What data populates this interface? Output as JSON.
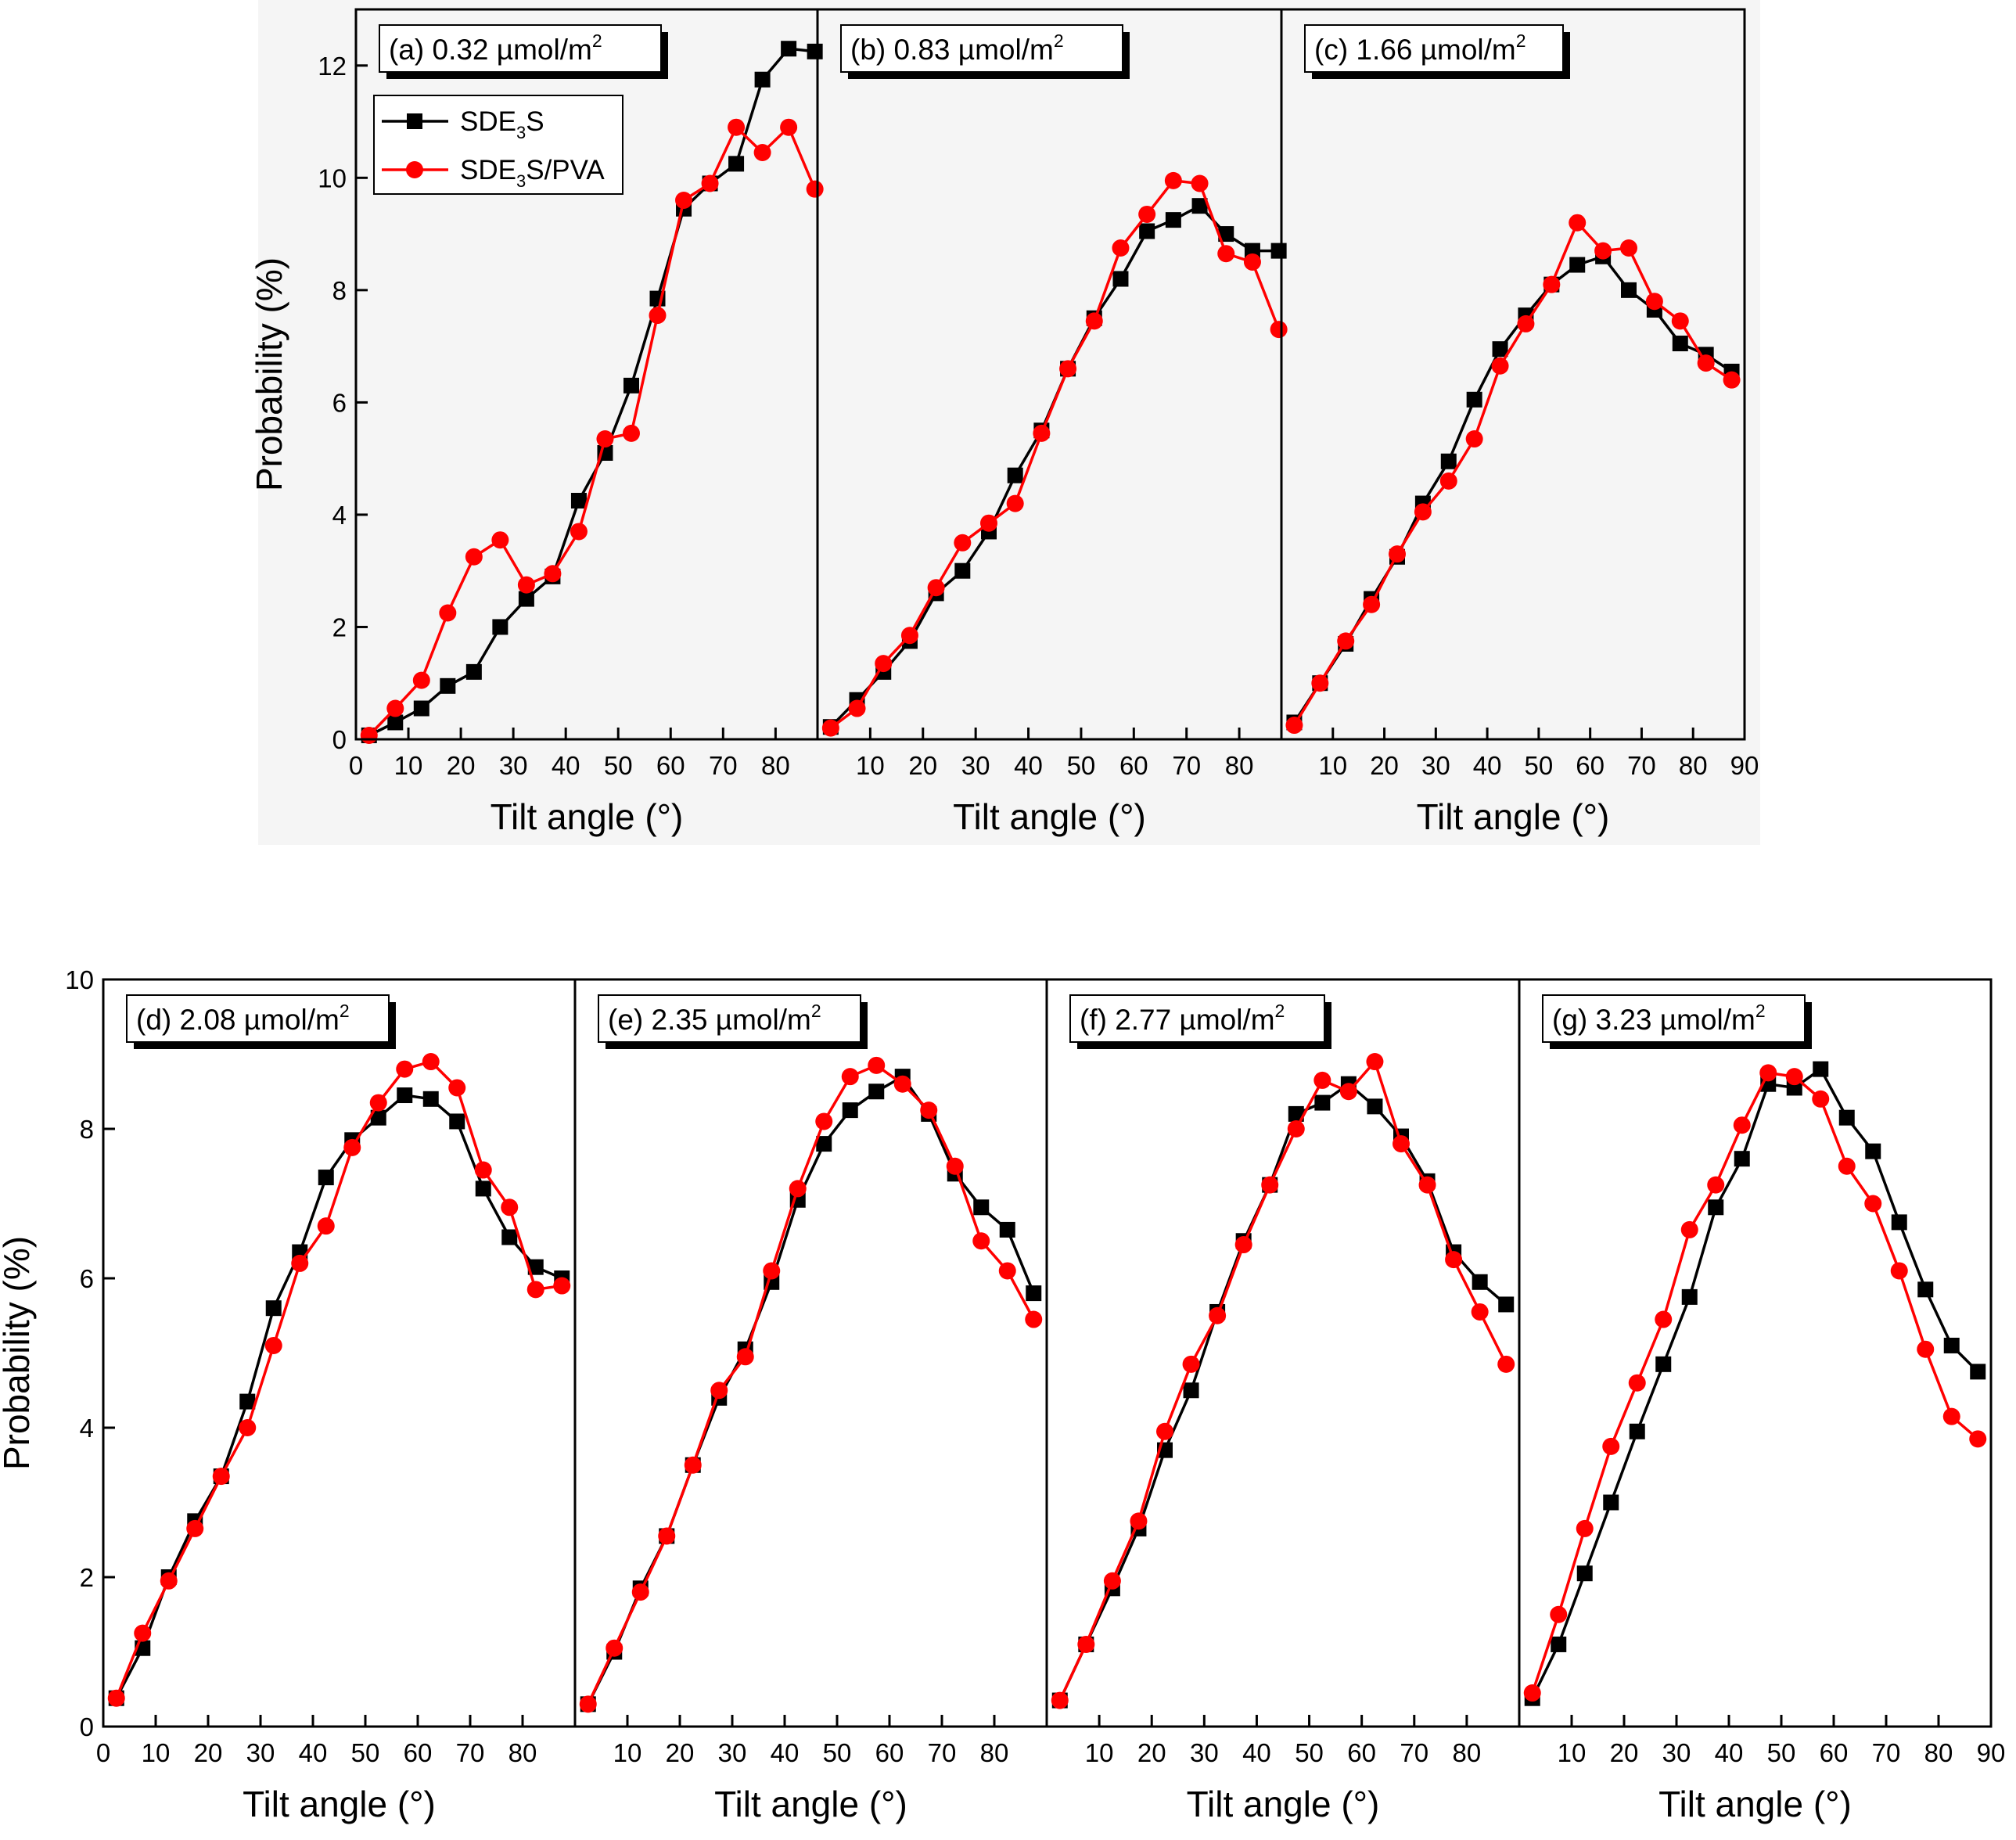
{
  "colors": {
    "series1": "#000000",
    "series2": "#ff0000",
    "row1_bg": "#f5f5f5",
    "frame": "#000000"
  },
  "legend": {
    "entries": [
      {
        "main": "SDE",
        "sub": "3",
        "rest": "S",
        "color": "#000000",
        "marker": "square"
      },
      {
        "main": "SDE",
        "sub": "3",
        "rest": "S/PVA",
        "color": "#ff0000",
        "marker": "circle"
      }
    ]
  },
  "chart_data": [
    {
      "type": "line",
      "row": 1,
      "ylabel": "Probability (%)",
      "ylim": [
        0,
        13
      ],
      "yticks": [
        0,
        2,
        4,
        6,
        8,
        10,
        12
      ],
      "panels": [
        {
          "title": "(a) 0.32 µmol/m",
          "sup": "2",
          "xlabel": "Tilt angle (°)",
          "xlim": [
            0,
            88
          ],
          "xticks": [
            0,
            10,
            20,
            30,
            40,
            50,
            60,
            70,
            80
          ],
          "series": [
            {
              "name": "SDE3S",
              "x": [
                2.5,
                7.5,
                12.5,
                17.5,
                22.5,
                27.5,
                32.5,
                37.5,
                42.5,
                47.5,
                52.5,
                57.5,
                62.5,
                67.5,
                72.5,
                77.5,
                82.5,
                87.5
              ],
              "y": [
                0.07,
                0.3,
                0.55,
                0.95,
                1.2,
                2.0,
                2.5,
                2.9,
                4.25,
                5.1,
                6.3,
                7.85,
                9.45,
                9.9,
                10.25,
                11.75,
                12.3,
                12.25
              ]
            },
            {
              "name": "SDE3S/PVA",
              "x": [
                2.5,
                7.5,
                12.5,
                17.5,
                22.5,
                27.5,
                32.5,
                37.5,
                42.5,
                47.5,
                52.5,
                57.5,
                62.5,
                67.5,
                72.5,
                77.5,
                82.5,
                87.5
              ],
              "y": [
                0.07,
                0.55,
                1.05,
                2.25,
                3.25,
                3.55,
                2.75,
                2.95,
                3.7,
                5.35,
                5.45,
                7.55,
                9.6,
                9.9,
                10.9,
                10.45,
                10.9,
                9.8
              ]
            }
          ]
        },
        {
          "title": "(b) 0.83 µmol/m",
          "sup": "2",
          "xlabel": "Tilt angle (°)",
          "xlim": [
            0,
            88
          ],
          "xticks": [
            10,
            20,
            30,
            40,
            50,
            60,
            70,
            80
          ],
          "series": [
            {
              "name": "SDE3S",
              "x": [
                2.5,
                7.5,
                12.5,
                17.5,
                22.5,
                27.5,
                32.5,
                37.5,
                42.5,
                47.5,
                52.5,
                57.5,
                62.5,
                67.5,
                72.5,
                77.5,
                82.5,
                87.5
              ],
              "y": [
                0.22,
                0.7,
                1.2,
                1.75,
                2.6,
                3.0,
                3.7,
                4.7,
                5.5,
                6.6,
                7.5,
                8.2,
                9.05,
                9.25,
                9.5,
                9.0,
                8.7,
                8.7
              ]
            },
            {
              "name": "SDE3S/PVA",
              "x": [
                2.5,
                7.5,
                12.5,
                17.5,
                22.5,
                27.5,
                32.5,
                37.5,
                42.5,
                47.5,
                52.5,
                57.5,
                62.5,
                67.5,
                72.5,
                77.5,
                82.5,
                87.5
              ],
              "y": [
                0.2,
                0.55,
                1.35,
                1.85,
                2.7,
                3.5,
                3.85,
                4.2,
                5.45,
                6.6,
                7.45,
                8.75,
                9.35,
                9.95,
                9.9,
                8.65,
                8.5,
                7.3
              ]
            }
          ]
        },
        {
          "title": "(c) 1.66 µmol/m",
          "sup": "2",
          "xlabel": "Tilt angle (°)",
          "xlim": [
            0,
            90
          ],
          "xticks": [
            10,
            20,
            30,
            40,
            50,
            60,
            70,
            80,
            90
          ],
          "series": [
            {
              "name": "SDE3S",
              "x": [
                2.5,
                7.5,
                12.5,
                17.5,
                22.5,
                27.5,
                32.5,
                37.5,
                42.5,
                47.5,
                52.5,
                57.5,
                62.5,
                67.5,
                72.5,
                77.5,
                82.5,
                87.5
              ],
              "y": [
                0.3,
                1.0,
                1.7,
                2.5,
                3.25,
                4.2,
                4.95,
                6.05,
                6.95,
                7.55,
                8.1,
                8.45,
                8.6,
                8.0,
                7.65,
                7.05,
                6.85,
                6.55
              ]
            },
            {
              "name": "SDE3S/PVA",
              "x": [
                2.5,
                7.5,
                12.5,
                17.5,
                22.5,
                27.5,
                32.5,
                37.5,
                42.5,
                47.5,
                52.5,
                57.5,
                62.5,
                67.5,
                72.5,
                77.5,
                82.5,
                87.5
              ],
              "y": [
                0.25,
                1.0,
                1.75,
                2.4,
                3.3,
                4.05,
                4.6,
                5.35,
                6.65,
                7.4,
                8.1,
                9.2,
                8.7,
                8.75,
                7.8,
                7.45,
                6.7,
                6.4
              ]
            }
          ]
        }
      ]
    },
    {
      "type": "line",
      "row": 2,
      "ylabel": "Probability (%)",
      "ylim": [
        0,
        10
      ],
      "yticks": [
        0,
        2,
        4,
        6,
        8,
        10
      ],
      "panels": [
        {
          "title": "(d) 2.08 µmol/m",
          "sup": "2",
          "xlabel": "Tilt angle (°)",
          "xlim": [
            0,
            90
          ],
          "xticks": [
            0,
            10,
            20,
            30,
            40,
            50,
            60,
            70,
            80
          ],
          "series": [
            {
              "name": "SDE3S",
              "x": [
                2.5,
                7.5,
                12.5,
                17.5,
                22.5,
                27.5,
                32.5,
                37.5,
                42.5,
                47.5,
                52.5,
                57.5,
                62.5,
                67.5,
                72.5,
                77.5,
                82.5,
                87.5
              ],
              "y": [
                0.38,
                1.05,
                2.0,
                2.75,
                3.35,
                4.35,
                5.6,
                6.35,
                7.35,
                7.85,
                8.15,
                8.45,
                8.4,
                8.1,
                7.2,
                6.55,
                6.15,
                6.0
              ]
            },
            {
              "name": "SDE3S/PVA",
              "x": [
                2.5,
                7.5,
                12.5,
                17.5,
                22.5,
                27.5,
                32.5,
                37.5,
                42.5,
                47.5,
                52.5,
                57.5,
                62.5,
                67.5,
                72.5,
                77.5,
                82.5,
                87.5
              ],
              "y": [
                0.38,
                1.25,
                1.95,
                2.65,
                3.35,
                4.0,
                5.1,
                6.2,
                6.7,
                7.75,
                8.35,
                8.8,
                8.9,
                8.55,
                7.45,
                6.95,
                5.85,
                5.9
              ]
            }
          ]
        },
        {
          "title": "(e) 2.35 µmol/m",
          "sup": "2",
          "xlabel": "Tilt angle (°)",
          "xlim": [
            0,
            90
          ],
          "xticks": [
            10,
            20,
            30,
            40,
            50,
            60,
            70,
            80
          ],
          "series": [
            {
              "name": "SDE3S",
              "x": [
                2.5,
                7.5,
                12.5,
                17.5,
                22.5,
                27.5,
                32.5,
                37.5,
                42.5,
                47.5,
                52.5,
                57.5,
                62.5,
                67.5,
                72.5,
                77.5,
                82.5,
                87.5
              ],
              "y": [
                0.3,
                1.0,
                1.85,
                2.55,
                3.5,
                4.4,
                5.05,
                5.95,
                7.05,
                7.8,
                8.25,
                8.5,
                8.7,
                8.2,
                7.4,
                6.95,
                6.65,
                5.8
              ]
            },
            {
              "name": "SDE3S/PVA",
              "x": [
                2.5,
                7.5,
                12.5,
                17.5,
                22.5,
                27.5,
                32.5,
                37.5,
                42.5,
                47.5,
                52.5,
                57.5,
                62.5,
                67.5,
                72.5,
                77.5,
                82.5,
                87.5
              ],
              "y": [
                0.3,
                1.05,
                1.8,
                2.55,
                3.5,
                4.5,
                4.95,
                6.1,
                7.2,
                8.1,
                8.7,
                8.85,
                8.6,
                8.25,
                7.5,
                6.5,
                6.1,
                5.45
              ]
            }
          ]
        },
        {
          "title": "(f) 2.77 µmol/m",
          "sup": "2",
          "xlabel": "Tilt angle (°)",
          "xlim": [
            0,
            90
          ],
          "xticks": [
            10,
            20,
            30,
            40,
            50,
            60,
            70,
            80
          ],
          "series": [
            {
              "name": "SDE3S",
              "x": [
                2.5,
                7.5,
                12.5,
                17.5,
                22.5,
                27.5,
                32.5,
                37.5,
                42.5,
                47.5,
                52.5,
                57.5,
                62.5,
                67.5,
                72.5,
                77.5,
                82.5,
                87.5
              ],
              "y": [
                0.35,
                1.1,
                1.85,
                2.65,
                3.7,
                4.5,
                5.55,
                6.5,
                7.25,
                8.2,
                8.35,
                8.6,
                8.3,
                7.9,
                7.3,
                6.35,
                5.95,
                5.65
              ]
            },
            {
              "name": "SDE3S/PVA",
              "x": [
                2.5,
                7.5,
                12.5,
                17.5,
                22.5,
                27.5,
                32.5,
                37.5,
                42.5,
                47.5,
                52.5,
                57.5,
                62.5,
                67.5,
                72.5,
                77.5,
                82.5,
                87.5
              ],
              "y": [
                0.35,
                1.1,
                1.95,
                2.75,
                3.95,
                4.85,
                5.5,
                6.45,
                7.25,
                8.0,
                8.65,
                8.5,
                8.9,
                7.8,
                7.25,
                6.25,
                5.55,
                4.85
              ]
            }
          ]
        },
        {
          "title": "(g) 3.23 µmol/m",
          "sup": "2",
          "xlabel": "Tilt angle (°)",
          "xlim": [
            0,
            90
          ],
          "xticks": [
            10,
            20,
            30,
            40,
            50,
            60,
            70,
            80,
            90
          ],
          "series": [
            {
              "name": "SDE3S",
              "x": [
                2.5,
                7.5,
                12.5,
                17.5,
                22.5,
                27.5,
                32.5,
                37.5,
                42.5,
                47.5,
                52.5,
                57.5,
                62.5,
                67.5,
                72.5,
                77.5,
                82.5,
                87.5
              ],
              "y": [
                0.38,
                1.1,
                2.05,
                3.0,
                3.95,
                4.85,
                5.75,
                6.95,
                7.6,
                8.6,
                8.55,
                8.8,
                8.15,
                7.7,
                6.75,
                5.85,
                5.1,
                4.75
              ]
            },
            {
              "name": "SDE3S/PVA",
              "x": [
                2.5,
                7.5,
                12.5,
                17.5,
                22.5,
                27.5,
                32.5,
                37.5,
                42.5,
                47.5,
                52.5,
                57.5,
                62.5,
                67.5,
                72.5,
                77.5,
                82.5,
                87.5
              ],
              "y": [
                0.45,
                1.5,
                2.65,
                3.75,
                4.6,
                5.45,
                6.65,
                7.25,
                8.05,
                8.75,
                8.7,
                8.4,
                7.5,
                7.0,
                6.1,
                5.05,
                4.15,
                3.85
              ]
            }
          ]
        }
      ]
    }
  ]
}
